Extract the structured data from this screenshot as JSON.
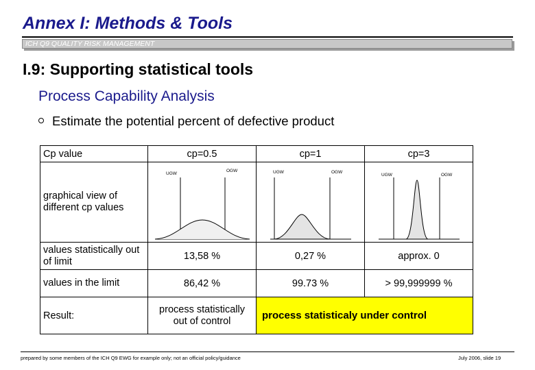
{
  "header": {
    "title": "Annex I: Methods & Tools",
    "subtitle": "ICH Q9 QUALITY RISK MANAGEMENT"
  },
  "main": {
    "heading": "I.9: Supporting statistical tools",
    "subheading": "Process Capability Analysis",
    "bullet": "Estimate the potential percent of defective product"
  },
  "table": {
    "col0_header": "Cp value",
    "col_headers": [
      "cp=0.5",
      "cp=1",
      "cp=3"
    ],
    "graph_label": "graphical view of different cp values",
    "limit_labels": {
      "lower": "UGW",
      "upper": "OGW"
    },
    "out_label": "values statistically out of limit",
    "out_values": [
      "13,58 %",
      "0,27 %",
      "approx. 0"
    ],
    "in_label": "values in the limit",
    "in_values": [
      "86,42 %",
      "99.73 %",
      "> 99,999999 %"
    ],
    "result_label": "Result:",
    "result_bad": "process statistically out of control",
    "result_good": "process statisticaly  under control",
    "highlight_color": "#ffff00"
  },
  "footer": {
    "left": "prepared by some members of the ICH Q9 EWG for example only; not an official policy/guidance",
    "right": "July 2006, slide 19"
  }
}
